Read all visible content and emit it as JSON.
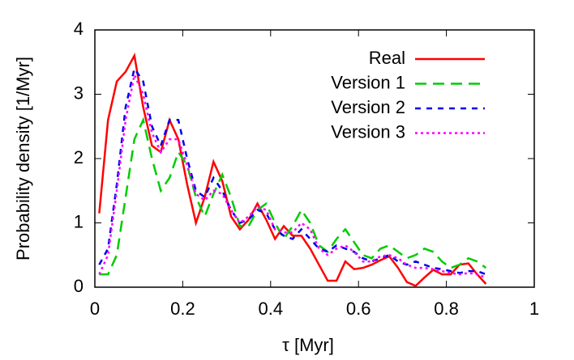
{
  "chart_data": {
    "type": "line",
    "xlabel": "τ [Myr]",
    "ylabel": "Probability density [1/Myr]",
    "xlim": [
      0,
      1
    ],
    "ylim": [
      0,
      4
    ],
    "xticks": [
      0,
      0.2,
      0.4,
      0.6,
      0.8,
      1
    ],
    "yticks": [
      0,
      1,
      2,
      3,
      4
    ],
    "legend": "top-right",
    "x": [
      0.01,
      0.03,
      0.05,
      0.07,
      0.09,
      0.11,
      0.13,
      0.15,
      0.17,
      0.19,
      0.21,
      0.23,
      0.25,
      0.27,
      0.29,
      0.31,
      0.33,
      0.35,
      0.37,
      0.39,
      0.41,
      0.43,
      0.45,
      0.47,
      0.49,
      0.51,
      0.53,
      0.55,
      0.57,
      0.59,
      0.61,
      0.63,
      0.65,
      0.67,
      0.69,
      0.71,
      0.73,
      0.75,
      0.77,
      0.79,
      0.81,
      0.83,
      0.85,
      0.87,
      0.89
    ],
    "series": [
      {
        "name": "Real",
        "color": "#ff0000",
        "dash": "solid",
        "values": [
          1.15,
          2.6,
          3.2,
          3.35,
          3.6,
          2.8,
          2.2,
          2.1,
          2.6,
          2.3,
          1.6,
          1.0,
          1.4,
          1.95,
          1.65,
          1.1,
          0.9,
          1.05,
          1.3,
          1.05,
          0.75,
          0.95,
          0.8,
          0.8,
          0.6,
          0.35,
          0.1,
          0.1,
          0.4,
          0.28,
          0.3,
          0.35,
          0.42,
          0.48,
          0.3,
          0.08,
          0.02,
          0.15,
          0.27,
          0.2,
          0.2,
          0.35,
          0.37,
          0.2,
          0.05
        ]
      },
      {
        "name": "Version 1",
        "color": "#00cc00",
        "dash": "long-dash",
        "values": [
          0.2,
          0.2,
          0.5,
          1.4,
          2.3,
          2.6,
          2.0,
          1.5,
          1.7,
          2.1,
          1.9,
          1.4,
          1.1,
          1.45,
          1.75,
          1.4,
          0.95,
          0.95,
          1.2,
          1.3,
          1.0,
          0.75,
          0.95,
          1.2,
          1.0,
          0.65,
          0.55,
          0.75,
          0.9,
          0.7,
          0.5,
          0.45,
          0.6,
          0.65,
          0.55,
          0.45,
          0.5,
          0.6,
          0.55,
          0.4,
          0.3,
          0.35,
          0.45,
          0.4,
          0.3
        ]
      },
      {
        "name": "Version 2",
        "color": "#0000ee",
        "dash": "short-dash",
        "values": [
          0.35,
          0.6,
          1.6,
          2.8,
          3.4,
          3.2,
          2.5,
          2.2,
          2.6,
          2.6,
          2.0,
          1.5,
          1.4,
          1.7,
          1.5,
          1.2,
          1.0,
          1.05,
          1.2,
          1.15,
          0.9,
          0.8,
          0.75,
          0.9,
          0.75,
          0.6,
          0.55,
          0.65,
          0.6,
          0.55,
          0.45,
          0.4,
          0.45,
          0.5,
          0.4,
          0.35,
          0.4,
          0.35,
          0.3,
          0.28,
          0.25,
          0.22,
          0.25,
          0.25,
          0.2
        ]
      },
      {
        "name": "Version 3",
        "color": "#ff00ff",
        "dash": "dotted",
        "values": [
          0.2,
          0.5,
          1.5,
          2.6,
          3.3,
          3.0,
          2.4,
          2.1,
          2.3,
          2.3,
          1.9,
          1.45,
          1.35,
          1.5,
          1.45,
          1.2,
          1.0,
          1.1,
          1.25,
          1.2,
          0.9,
          0.85,
          0.85,
          1.0,
          0.9,
          0.6,
          0.5,
          0.6,
          0.65,
          0.55,
          0.4,
          0.4,
          0.48,
          0.5,
          0.45,
          0.35,
          0.3,
          0.3,
          0.28,
          0.25,
          0.22,
          0.2,
          0.22,
          0.2,
          0.15
        ]
      }
    ]
  }
}
